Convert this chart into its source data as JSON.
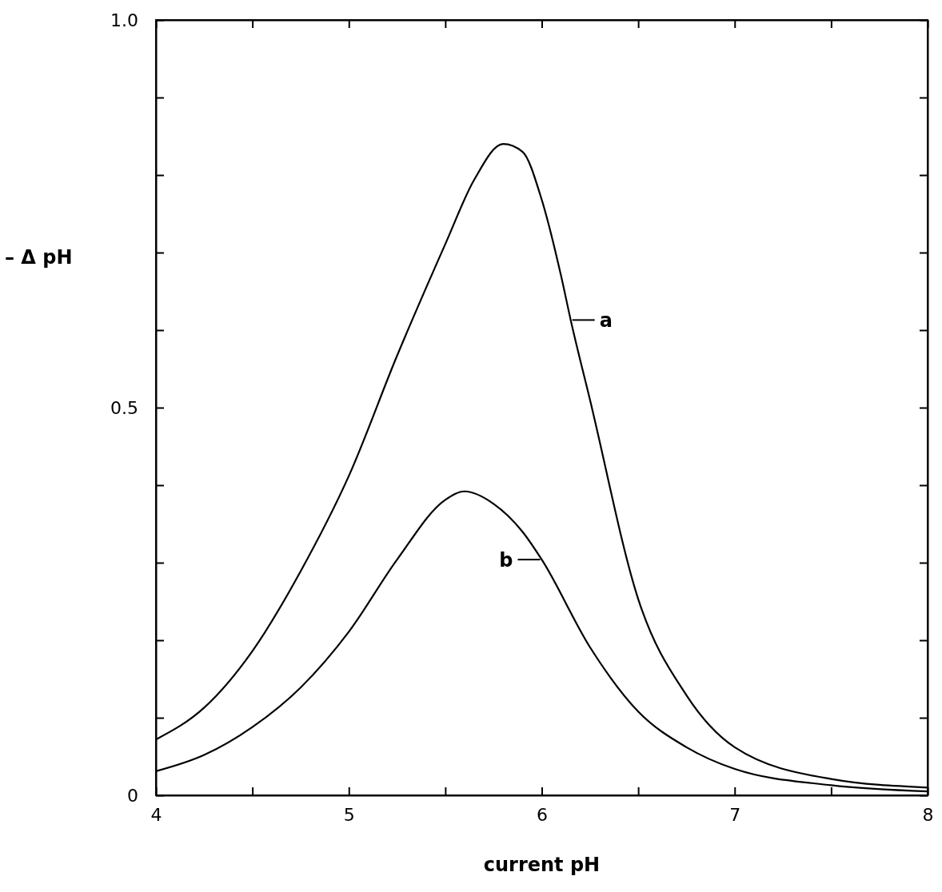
{
  "chart_data": {
    "type": "line",
    "xlabel": "current pH",
    "ylabel": "– Δ pH",
    "xlim": [
      4,
      8
    ],
    "ylim": [
      0,
      1
    ],
    "xticks": [
      4,
      {
        "value": 4.5,
        "label": null
      },
      5,
      {
        "value": 5.5,
        "label": null
      },
      6,
      {
        "value": 6.5,
        "label": null
      },
      7,
      {
        "value": 7.5,
        "label": null
      },
      8
    ],
    "yticks": [
      0,
      {
        "value": 0.1,
        "label": null
      },
      {
        "value": 0.2,
        "label": null
      },
      {
        "value": 0.3,
        "label": null
      },
      {
        "value": 0.4,
        "label": null
      },
      0.5,
      {
        "value": 0.6,
        "label": null
      },
      {
        "value": 0.7,
        "label": null
      },
      {
        "value": 0.8,
        "label": null
      },
      {
        "value": 0.9,
        "label": null
      },
      {
        "value": 1,
        "label": "1.0"
      }
    ],
    "grid": false,
    "marker": "none",
    "line_style": "solid",
    "series": [
      {
        "color": "#000000",
        "x": [
          4,
          4.25,
          4.5,
          4.75,
          5,
          5.25,
          5.5,
          5.65,
          5.8,
          5.9,
          6,
          6.1,
          6.15,
          6.25,
          6.5,
          6.75,
          7,
          7.5,
          8
        ],
        "values": [
          0.072,
          0.113,
          0.186,
          0.289,
          0.412,
          0.567,
          0.711,
          0.794,
          0.84,
          0.83,
          0.768,
          0.67,
          0.613,
          0.51,
          0.253,
          0.129,
          0.062,
          0.021,
          0.01
        ]
      },
      {
        "color": "#000000",
        "x": [
          4,
          4.25,
          4.5,
          4.75,
          5,
          5.25,
          5.5,
          5.6,
          5.75,
          5.9,
          6,
          6.25,
          6.5,
          6.75,
          7,
          7.5,
          8
        ],
        "values": [
          0.031,
          0.052,
          0.088,
          0.139,
          0.211,
          0.304,
          0.381,
          0.392,
          0.376,
          0.34,
          0.304,
          0.191,
          0.108,
          0.062,
          0.034,
          0.013,
          0.005
        ]
      }
    ],
    "annotations": [
      {
        "text": "a",
        "x": 6.15,
        "y": 0.613
      },
      {
        "text": "b",
        "x": 6,
        "y": 0.304
      }
    ]
  }
}
